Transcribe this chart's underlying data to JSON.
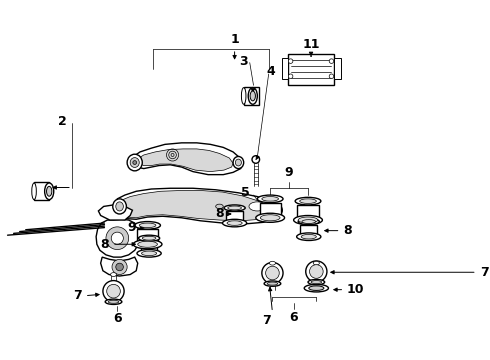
{
  "bg_color": "#ffffff",
  "line_color": "#000000",
  "fig_width": 4.9,
  "fig_height": 3.6,
  "dpi": 100,
  "callouts": [
    {
      "num": "1",
      "nx": 0.4,
      "ny": 0.965
    },
    {
      "num": "2",
      "nx": 0.085,
      "ny": 0.755
    },
    {
      "num": "3",
      "nx": 0.34,
      "ny": 0.895
    },
    {
      "num": "4",
      "nx": 0.37,
      "ny": 0.84
    },
    {
      "num": "5",
      "nx": 0.36,
      "ny": 0.53
    },
    {
      "num": "6",
      "nx": 0.195,
      "ny": 0.05
    },
    {
      "num": "6",
      "nx": 0.54,
      "ny": 0.05
    },
    {
      "num": "7",
      "nx": 0.1,
      "ny": 0.235
    },
    {
      "num": "7",
      "nx": 0.49,
      "ny": 0.36
    },
    {
      "num": "7",
      "nx": 0.665,
      "ny": 0.38
    },
    {
      "num": "8",
      "nx": 0.155,
      "ny": 0.465
    },
    {
      "num": "8",
      "nx": 0.45,
      "ny": 0.53
    },
    {
      "num": "8",
      "nx": 0.745,
      "ny": 0.545
    },
    {
      "num": "9",
      "nx": 0.175,
      "ny": 0.59
    },
    {
      "num": "9",
      "nx": 0.565,
      "ny": 0.72
    },
    {
      "num": "10",
      "nx": 0.78,
      "ny": 0.33
    },
    {
      "num": "11",
      "nx": 0.625,
      "ny": 0.94
    }
  ]
}
